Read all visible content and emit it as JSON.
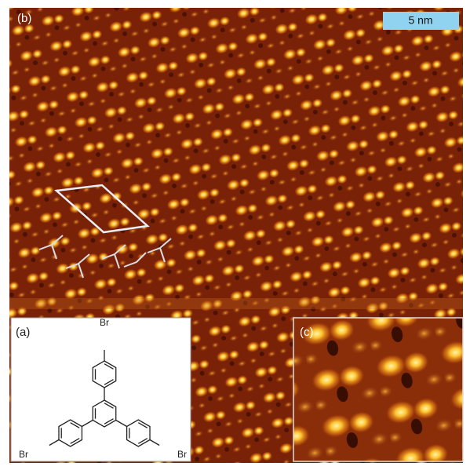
{
  "panels": {
    "b": {
      "label": "(b)",
      "scale_bar": "5 nm"
    },
    "a": {
      "label": "(a)",
      "atoms": [
        "Br",
        "Br",
        "Br"
      ]
    },
    "c": {
      "label": "(c)"
    }
  }
}
